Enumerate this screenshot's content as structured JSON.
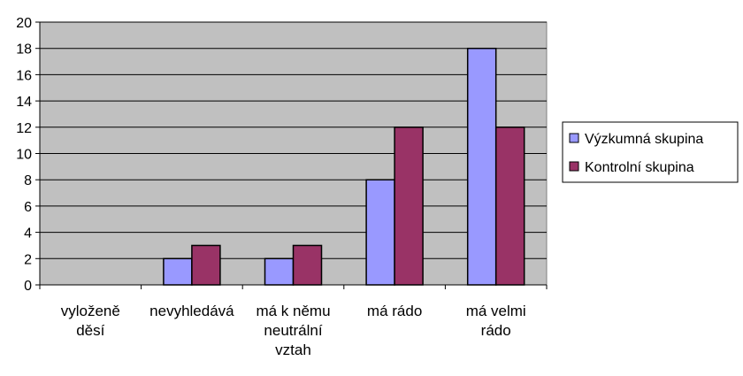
{
  "chart_data": {
    "type": "bar",
    "categories": [
      [
        "vyloženě",
        "děsí"
      ],
      [
        "nevyhledává"
      ],
      [
        "má k němu",
        "neutrální",
        "vztah"
      ],
      [
        "má rádo"
      ],
      [
        "má velmi",
        "rádo"
      ]
    ],
    "series": [
      {
        "name": "Výzkumná skupina",
        "values": [
          0,
          2,
          2,
          8,
          18
        ],
        "color": "#9999ff"
      },
      {
        "name": "Kontrolní skupina",
        "values": [
          0,
          3,
          3,
          12,
          12
        ],
        "color": "#993366"
      }
    ],
    "ylim": [
      0,
      20
    ],
    "yticks": [
      0,
      2,
      4,
      6,
      8,
      10,
      12,
      14,
      16,
      18,
      20
    ],
    "grid": true,
    "plot_background": "#c0c0c0",
    "legend_position": "right"
  }
}
